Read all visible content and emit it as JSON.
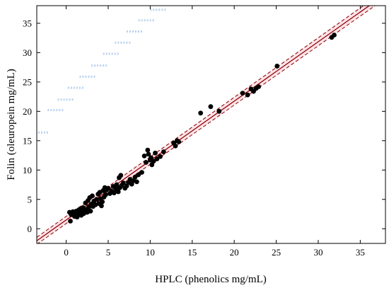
{
  "chart_data": {
    "type": "scatter",
    "xlabel": "HPLC (phenolics mg/mL)",
    "ylabel": "Folin (oleuropein mg/mL)",
    "xlim": [
      -3.5,
      38
    ],
    "ylim": [
      -2.5,
      38
    ],
    "xticks": [
      0,
      5,
      10,
      15,
      20,
      25,
      30,
      35
    ],
    "yticks": [
      0,
      5,
      10,
      15,
      20,
      25,
      30,
      35
    ],
    "grid": false,
    "series": [
      {
        "kind": "points",
        "color": "#000000",
        "points": [
          [
            0.4,
            2.8
          ],
          [
            0.5,
            1.3
          ],
          [
            0.6,
            2.4
          ],
          [
            0.8,
            2.9
          ],
          [
            1.0,
            2.1
          ],
          [
            1.1,
            2.6
          ],
          [
            1.2,
            3.0
          ],
          [
            1.3,
            2.0
          ],
          [
            1.4,
            2.5
          ],
          [
            1.5,
            3.2
          ],
          [
            1.6,
            2.7
          ],
          [
            1.7,
            3.4
          ],
          [
            1.8,
            2.3
          ],
          [
            1.9,
            2.9
          ],
          [
            2.0,
            3.6
          ],
          [
            2.1,
            2.6
          ],
          [
            2.2,
            3.1
          ],
          [
            2.3,
            4.4
          ],
          [
            2.4,
            3.3
          ],
          [
            2.5,
            2.8
          ],
          [
            2.6,
            4.8
          ],
          [
            2.7,
            3.7
          ],
          [
            2.8,
            5.3
          ],
          [
            2.9,
            3.0
          ],
          [
            3.0,
            4.2
          ],
          [
            3.1,
            5.6
          ],
          [
            3.2,
            3.8
          ],
          [
            3.3,
            4.7
          ],
          [
            3.5,
            4.1
          ],
          [
            3.6,
            5.0
          ],
          [
            3.8,
            5.9
          ],
          [
            3.9,
            4.3
          ],
          [
            4.0,
            6.2
          ],
          [
            4.1,
            5.1
          ],
          [
            4.2,
            3.9
          ],
          [
            4.3,
            4.6
          ],
          [
            4.4,
            6.5
          ],
          [
            4.5,
            5.4
          ],
          [
            4.6,
            7.0
          ],
          [
            4.7,
            5.8
          ],
          [
            4.8,
            6.6
          ],
          [
            5.0,
            6.9
          ],
          [
            5.2,
            6.0
          ],
          [
            5.4,
            6.4
          ],
          [
            5.6,
            7.2
          ],
          [
            5.7,
            6.1
          ],
          [
            5.9,
            6.8
          ],
          [
            6.0,
            7.5
          ],
          [
            6.2,
            6.3
          ],
          [
            6.3,
            8.7
          ],
          [
            6.4,
            7.0
          ],
          [
            6.5,
            9.1
          ],
          [
            6.6,
            7.4
          ],
          [
            6.8,
            7.8
          ],
          [
            7.0,
            6.9
          ],
          [
            7.2,
            7.3
          ],
          [
            7.4,
            7.9
          ],
          [
            7.6,
            8.4
          ],
          [
            7.8,
            7.6
          ],
          [
            8.0,
            8.2
          ],
          [
            8.2,
            8.8
          ],
          [
            8.4,
            8.0
          ],
          [
            8.6,
            9.2
          ],
          [
            9.0,
            9.6
          ],
          [
            9.3,
            12.4
          ],
          [
            9.5,
            11.3
          ],
          [
            9.7,
            13.4
          ],
          [
            9.8,
            12.7
          ],
          [
            10.0,
            11.7
          ],
          [
            10.1,
            12.1
          ],
          [
            10.2,
            10.9
          ],
          [
            10.4,
            11.5
          ],
          [
            10.6,
            12.9
          ],
          [
            10.8,
            11.9
          ],
          [
            11.2,
            12.3
          ],
          [
            11.6,
            13.1
          ],
          [
            12.8,
            14.6
          ],
          [
            13.0,
            14.1
          ],
          [
            13.2,
            15.0
          ],
          [
            13.4,
            14.8
          ],
          [
            16.0,
            19.7
          ],
          [
            17.2,
            20.8
          ],
          [
            18.2,
            20.0
          ],
          [
            21.0,
            23.1
          ],
          [
            21.6,
            22.8
          ],
          [
            22.0,
            23.8
          ],
          [
            22.3,
            23.4
          ],
          [
            22.6,
            23.9
          ],
          [
            22.9,
            24.2
          ],
          [
            25.1,
            27.7
          ],
          [
            31.6,
            32.6
          ],
          [
            31.9,
            33.0
          ]
        ]
      },
      {
        "kind": "regression",
        "color": "#8b0000",
        "line": {
          "x": [
            -3.5,
            38
          ],
          "y": [
            -2.05,
            39.95
          ]
        }
      },
      {
        "kind": "confidence-band",
        "color": "#8b0000",
        "fill": "#ffd0d8",
        "upper": {
          "x": [
            -3.5,
            38
          ],
          "y": [
            -1.45,
            40.65
          ]
        },
        "lower": {
          "x": [
            -3.5,
            38
          ],
          "y": [
            -2.65,
            39.25
          ]
        }
      }
    ],
    "watermark": {
      "color": "#aac8ec",
      "segments": [
        [
          -3.0,
          16.4
        ],
        [
          -1.2,
          20.2
        ],
        [
          0.0,
          22.0
        ],
        [
          1.2,
          24.0
        ],
        [
          2.6,
          25.9
        ],
        [
          4.0,
          27.8
        ],
        [
          5.4,
          29.8
        ],
        [
          6.8,
          31.7
        ],
        [
          8.2,
          33.6
        ],
        [
          9.6,
          35.5
        ],
        [
          11.0,
          37.3
        ]
      ]
    }
  }
}
